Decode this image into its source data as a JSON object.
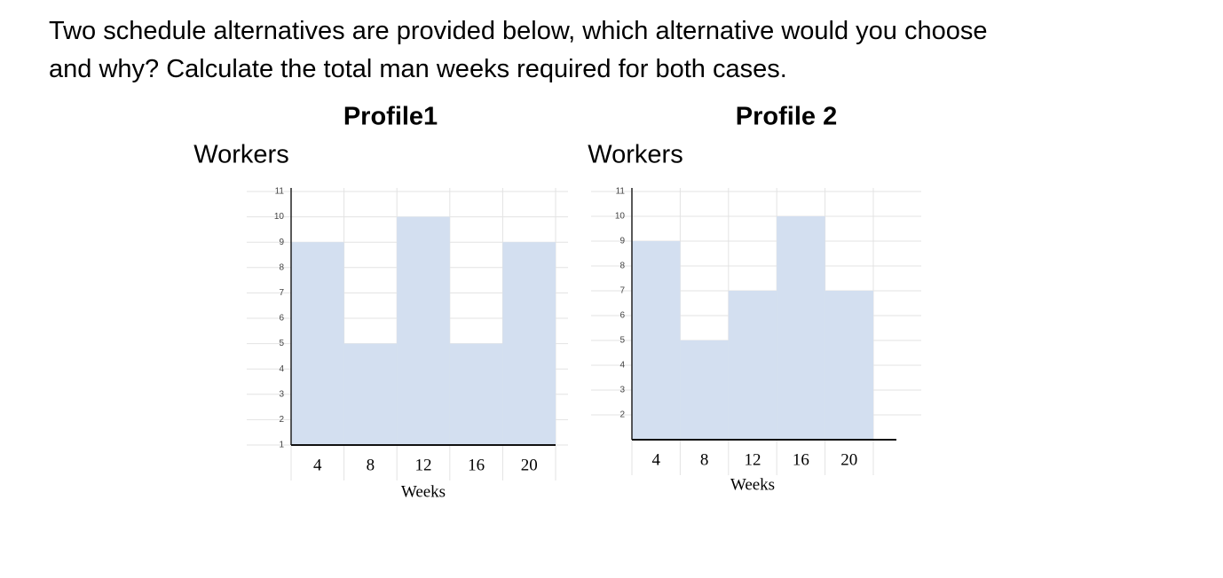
{
  "question": [
    "Two schedule alternatives are provided below, which alternative would you choose",
    "and why? Calculate the total man weeks required for both cases."
  ],
  "chart_data": [
    {
      "type": "bar",
      "title": "Profile1",
      "y_label": "Workers",
      "x_label": "Weeks",
      "categories": [
        "4",
        "8",
        "12",
        "16",
        "20"
      ],
      "values": [
        9,
        5,
        10,
        5,
        9
      ],
      "color": "#d3dff0",
      "ylim": [
        1,
        11
      ],
      "yticks": [
        1,
        2,
        3,
        4,
        5,
        6,
        7,
        8,
        9,
        10,
        11
      ],
      "grid": true
    },
    {
      "type": "bar",
      "title": "Profile 2",
      "y_label": "Workers",
      "x_label": "Weeks",
      "categories": [
        "4",
        "8",
        "12",
        "16",
        "20"
      ],
      "values": [
        9,
        5,
        7,
        10,
        7
      ],
      "color": "#d3dff0",
      "ylim": [
        1,
        11
      ],
      "yticks": [
        2,
        3,
        4,
        5,
        6,
        7,
        8,
        9,
        10,
        11
      ],
      "grid": true
    }
  ]
}
